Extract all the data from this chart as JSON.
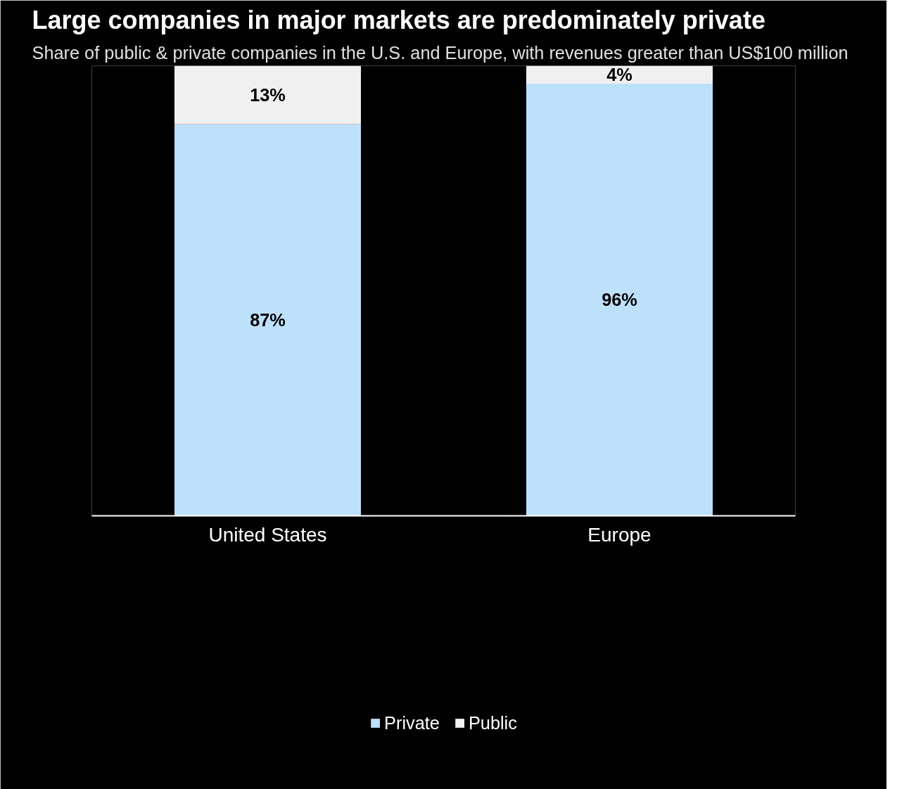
{
  "chart_data": {
    "type": "bar",
    "title": "Large companies in major markets are predominately private",
    "subtitle": "Share of public & private companies in the U.S. and Europe, with revenues greater than US$100 million",
    "categories": [
      "United States",
      "Europe"
    ],
    "stacked": true,
    "series": [
      {
        "name": "Private",
        "color": "#bde0fb",
        "values": [
          87,
          96
        ],
        "value_labels": [
          "87%",
          "96%"
        ]
      },
      {
        "name": "Public",
        "color": "#f0f0f0",
        "values": [
          13,
          4
        ],
        "value_labels": [
          "13%",
          "4%"
        ]
      }
    ],
    "legend": "bottom",
    "grid": false
  }
}
